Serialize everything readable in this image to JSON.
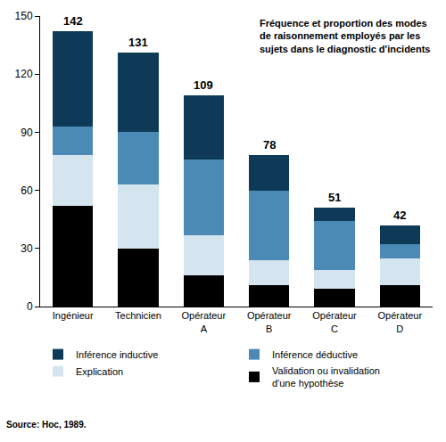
{
  "chart_data": {
    "type": "bar",
    "title": "Fréquence et proportion des modes\nde raisonnement employés par les\nsujets dans le diagnostic d'incidents",
    "categories": [
      "Ingénieur",
      "Technicien",
      "Opérateur\nA",
      "Opérateur\nB",
      "Opérateur\nC",
      "Opérateur\nD"
    ],
    "series": [
      {
        "name": "Validation ou invalidation\nd'une hypothèse",
        "color": "#000000",
        "values": [
          52,
          30,
          16,
          11,
          9,
          11
        ]
      },
      {
        "name": "Explication",
        "color": "#d4e5f0",
        "values": [
          26,
          33,
          21,
          13,
          10,
          14
        ]
      },
      {
        "name": "Inférence déductive",
        "color": "#4a8ab5",
        "values": [
          15,
          27,
          39,
          36,
          25,
          7
        ]
      },
      {
        "name": "Inférence inductive",
        "color": "#0e3a58",
        "values": [
          49,
          41,
          33,
          18,
          7,
          10
        ]
      }
    ],
    "totals": [
      142,
      131,
      109,
      78,
      51,
      42
    ],
    "ylim": [
      0,
      150
    ],
    "yticks": [
      0,
      30,
      60,
      90,
      120,
      150
    ],
    "stacked": true,
    "grid": false,
    "legend": "bottom",
    "source": "Source: Hoc, 1989."
  }
}
